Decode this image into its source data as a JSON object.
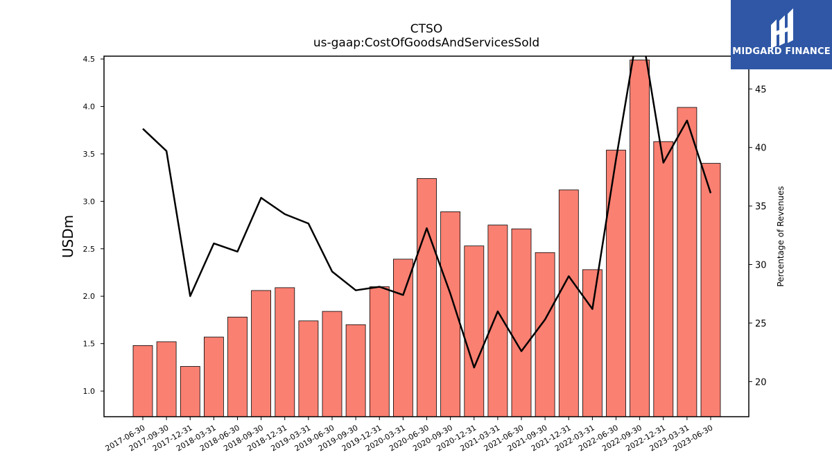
{
  "header": {
    "title": "CTSO",
    "subtitle": "us-gaap:CostOfGoodsAndServicesSold"
  },
  "logo": {
    "text": "MIDGARD FINANCE",
    "background": "#2f57a6"
  },
  "chart_data": {
    "type": "bar",
    "categories": [
      "2017-06-30",
      "2017-09-30",
      "2017-12-31",
      "2018-03-31",
      "2018-06-30",
      "2018-09-30",
      "2018-12-31",
      "2019-03-31",
      "2019-06-30",
      "2019-09-30",
      "2019-12-31",
      "2020-03-31",
      "2020-06-30",
      "2020-09-30",
      "2020-12-31",
      "2021-03-31",
      "2021-06-30",
      "2021-09-30",
      "2021-12-31",
      "2022-03-31",
      "2022-06-30",
      "2022-09-30",
      "2022-12-31",
      "2023-03-31",
      "2023-06-30"
    ],
    "series": [
      {
        "type": "bar",
        "axis": "left",
        "color": "#fa8072",
        "values": [
          1.48,
          1.52,
          1.26,
          1.57,
          1.78,
          2.06,
          2.09,
          1.74,
          1.84,
          1.7,
          2.1,
          2.39,
          3.24,
          2.89,
          2.53,
          2.75,
          2.71,
          2.46,
          3.12,
          2.28,
          3.54,
          4.49,
          3.63,
          3.99,
          3.4
        ]
      },
      {
        "type": "line",
        "axis": "right",
        "color": "#000000",
        "values": [
          41.6,
          39.7,
          27.3,
          31.8,
          31.1,
          35.7,
          34.3,
          33.5,
          29.4,
          27.8,
          28.1,
          27.4,
          33.1,
          27.5,
          21.2,
          26.0,
          22.6,
          25.3,
          29.0,
          26.2,
          39.0,
          51.0,
          38.7,
          42.3,
          36.1
        ]
      }
    ],
    "ylabel": "USDm",
    "y2label": "Percentage of Revenues",
    "ylim": [
      0.73,
      4.53
    ],
    "y2lim": [
      17.0,
      47.8
    ],
    "yticks": [
      1.0,
      1.5,
      2.0,
      2.5,
      3.0,
      3.5,
      4.0,
      4.5
    ],
    "y2ticks": [
      20,
      25,
      30,
      35,
      40,
      45
    ],
    "grid": false,
    "legend": "none"
  }
}
